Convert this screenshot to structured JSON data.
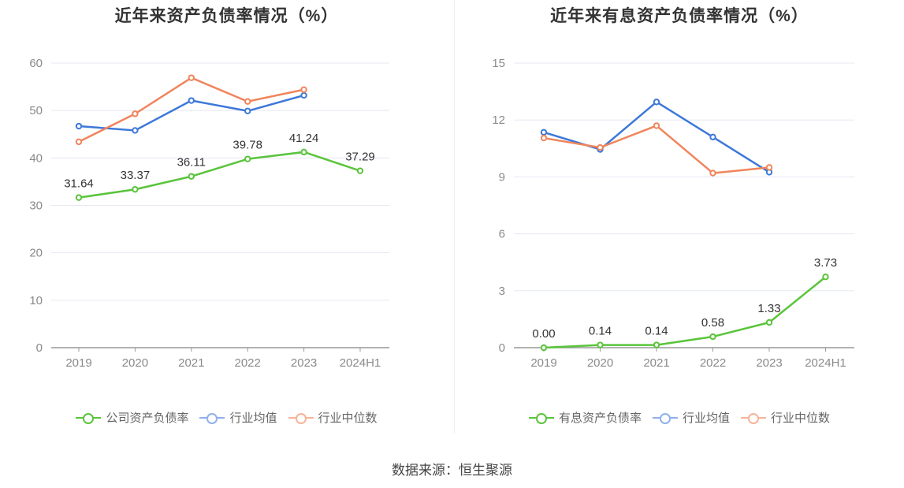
{
  "chart_data": [
    {
      "type": "line",
      "title": "近年来资产负债率情况（%）",
      "categories": [
        "2019",
        "2020",
        "2021",
        "2022",
        "2023",
        "2024H1"
      ],
      "ylim": [
        0,
        60
      ],
      "yticks": [
        0,
        10,
        20,
        30,
        40,
        50,
        60
      ],
      "grid": true,
      "legend_position": "bottom",
      "series": [
        {
          "name": "公司资产负债率",
          "color": "#5ac43c",
          "values": [
            31.64,
            33.37,
            36.11,
            39.78,
            41.24,
            37.29
          ],
          "data_labels": [
            "31.64",
            "33.37",
            "36.11",
            "39.78",
            "41.24",
            "37.29"
          ],
          "legend_color": "#5ac43c"
        },
        {
          "name": "行业均值",
          "color": "#3c78d8",
          "values": [
            46.7,
            45.8,
            52.1,
            49.9,
            53.2,
            null
          ],
          "legend_color": "#8fb1ec"
        },
        {
          "name": "行业中位数",
          "color": "#f0855c",
          "values": [
            43.4,
            49.3,
            56.9,
            51.9,
            54.4,
            null
          ],
          "legend_color": "#f7b399"
        }
      ]
    },
    {
      "type": "line",
      "title": "近年来有息资产负债率情况（%）",
      "categories": [
        "2019",
        "2020",
        "2021",
        "2022",
        "2023",
        "2024H1"
      ],
      "ylim": [
        0,
        15
      ],
      "yticks": [
        0,
        3,
        6,
        9,
        12,
        15
      ],
      "grid": true,
      "legend_position": "bottom",
      "series": [
        {
          "name": "有息资产负债率",
          "color": "#5ac43c",
          "values": [
            0.0,
            0.14,
            0.14,
            0.58,
            1.33,
            3.73
          ],
          "data_labels": [
            "0.00",
            "0.14",
            "0.14",
            "0.58",
            "1.33",
            "3.73"
          ],
          "legend_color": "#5ac43c"
        },
        {
          "name": "行业均值",
          "color": "#3c78d8",
          "values": [
            11.35,
            10.45,
            12.95,
            11.1,
            9.25,
            null
          ],
          "legend_color": "#8fb1ec"
        },
        {
          "name": "行业中位数",
          "color": "#f0855c",
          "values": [
            11.05,
            10.55,
            11.7,
            9.2,
            9.5,
            null
          ],
          "legend_color": "#f7b399"
        }
      ]
    }
  ],
  "source": "数据来源：恒生聚源"
}
